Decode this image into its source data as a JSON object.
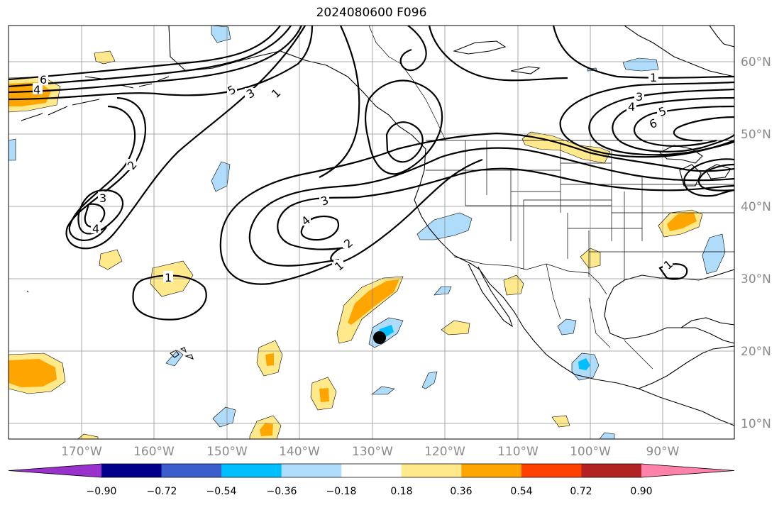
{
  "title": "2024080600 F096",
  "map": {
    "lat_labels": [
      "60°N",
      "50°N",
      "40°N",
      "30°N",
      "20°N",
      "10°N"
    ],
    "lon_labels": [
      "170°W",
      "160°W",
      "150°W",
      "140°W",
      "130°W",
      "120°W",
      "110°W",
      "100°W",
      "90°W"
    ],
    "contour_labels": [
      "6",
      "4",
      "5",
      "3",
      "1",
      "2",
      "3",
      "4",
      "1",
      "4",
      "3",
      "2",
      "1",
      "1",
      "3",
      "4",
      "5",
      "6",
      "1"
    ],
    "marker": "storm-center-dot"
  },
  "colorbar": {
    "ticks": [
      "−0.90",
      "−0.72",
      "−0.54",
      "−0.36",
      "−0.18",
      "0.18",
      "0.36",
      "0.54",
      "0.72",
      "0.90"
    ],
    "colors": [
      "#9932cc",
      "#00008b",
      "#3a5fcd",
      "#00bfff",
      "#afdcfa",
      "#ffffff",
      "#ffe98a",
      "#ffa500",
      "#ff4000",
      "#b22222",
      "#ff82ab"
    ]
  }
}
